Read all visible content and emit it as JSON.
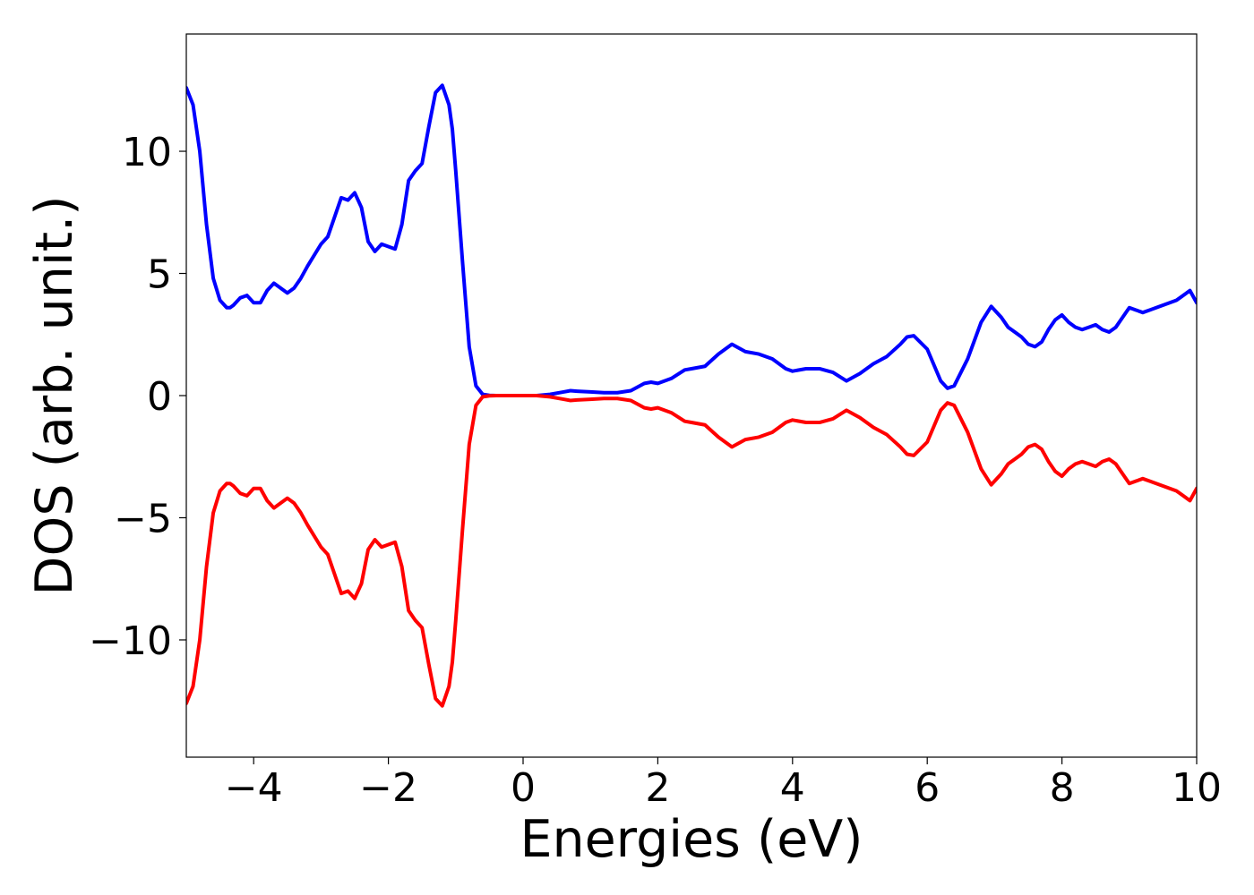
{
  "chart_data": {
    "type": "line",
    "title": "",
    "xlabel": "Energies (eV)",
    "ylabel": "DOS (arb. unit.)",
    "xlim": [
      -5,
      10
    ],
    "ylim": [
      -14.8,
      14.8
    ],
    "xticks": [
      -4,
      -2,
      0,
      2,
      4,
      6,
      8,
      10
    ],
    "xtick_labels": [
      "−4",
      "−2",
      "0",
      "2",
      "4",
      "6",
      "8",
      "10"
    ],
    "yticks": [
      -10,
      -5,
      0,
      5,
      10
    ],
    "ytick_labels": [
      "−10",
      "−5",
      "0",
      "5",
      "10"
    ],
    "grid": false,
    "legend": "none",
    "series": [
      {
        "color": "#0000ff",
        "x": [
          -5.0,
          -4.9,
          -4.8,
          -4.7,
          -4.6,
          -4.5,
          -4.4,
          -4.35,
          -4.3,
          -4.2,
          -4.1,
          -4.0,
          -3.9,
          -3.8,
          -3.7,
          -3.6,
          -3.5,
          -3.4,
          -3.3,
          -3.2,
          -3.0,
          -2.9,
          -2.8,
          -2.7,
          -2.6,
          -2.5,
          -2.4,
          -2.3,
          -2.2,
          -2.1,
          -2.0,
          -1.9,
          -1.8,
          -1.7,
          -1.6,
          -1.5,
          -1.4,
          -1.3,
          -1.2,
          -1.1,
          -1.05,
          -1.0,
          -0.9,
          -0.8,
          -0.7,
          -0.6,
          -0.5,
          -0.4,
          -0.3,
          -0.2,
          0.0,
          0.2,
          0.4,
          0.6,
          0.7,
          0.8,
          1.0,
          1.2,
          1.4,
          1.6,
          1.8,
          1.9,
          2.0,
          2.2,
          2.4,
          2.5,
          2.7,
          2.9,
          3.1,
          3.3,
          3.5,
          3.7,
          3.9,
          4.0,
          4.2,
          4.4,
          4.6,
          4.8,
          5.0,
          5.2,
          5.4,
          5.6,
          5.7,
          5.8,
          6.0,
          6.2,
          6.3,
          6.4,
          6.6,
          6.8,
          6.95,
          7.1,
          7.2,
          7.3,
          7.4,
          7.5,
          7.6,
          7.7,
          7.8,
          7.9,
          8.0,
          8.1,
          8.2,
          8.3,
          8.4,
          8.5,
          8.6,
          8.7,
          8.8,
          8.9,
          9.0,
          9.1,
          9.2,
          9.3,
          9.4,
          9.5,
          9.6,
          9.7,
          9.8,
          9.9,
          10.0
        ],
        "y": [
          12.6,
          11.9,
          10.0,
          7.0,
          4.8,
          3.9,
          3.6,
          3.6,
          3.7,
          4.0,
          4.1,
          3.8,
          3.8,
          4.3,
          4.6,
          4.4,
          4.2,
          4.4,
          4.8,
          5.3,
          6.2,
          6.5,
          7.3,
          8.1,
          8.0,
          8.3,
          7.7,
          6.3,
          5.9,
          6.2,
          6.1,
          6.0,
          7.0,
          8.8,
          9.2,
          9.5,
          11.0,
          12.4,
          12.7,
          11.9,
          10.9,
          9.2,
          5.5,
          2.0,
          0.4,
          0.05,
          0.01,
          0.0,
          0.0,
          0.0,
          0.0,
          0.0,
          0.05,
          0.15,
          0.2,
          0.18,
          0.15,
          0.12,
          0.12,
          0.2,
          0.5,
          0.55,
          0.5,
          0.7,
          1.05,
          1.1,
          1.2,
          1.7,
          2.1,
          1.8,
          1.7,
          1.5,
          1.1,
          1.0,
          1.1,
          1.1,
          0.95,
          0.6,
          0.9,
          1.3,
          1.6,
          2.1,
          2.4,
          2.45,
          1.9,
          0.6,
          0.3,
          0.4,
          1.5,
          3.0,
          3.65,
          3.2,
          2.8,
          2.6,
          2.4,
          2.1,
          2.0,
          2.2,
          2.7,
          3.1,
          3.3,
          3.0,
          2.8,
          2.7,
          2.8,
          2.9,
          2.7,
          2.6,
          2.8,
          3.2,
          3.6,
          3.5,
          3.4,
          3.5,
          3.6,
          3.7,
          3.8,
          3.9,
          4.1,
          4.3,
          3.8
        ]
      },
      {
        "color": "#ff0000",
        "x": [
          -5.0,
          -4.9,
          -4.8,
          -4.7,
          -4.6,
          -4.5,
          -4.4,
          -4.35,
          -4.3,
          -4.2,
          -4.1,
          -4.0,
          -3.9,
          -3.8,
          -3.7,
          -3.6,
          -3.5,
          -3.4,
          -3.3,
          -3.2,
          -3.0,
          -2.9,
          -2.8,
          -2.7,
          -2.6,
          -2.5,
          -2.4,
          -2.3,
          -2.2,
          -2.1,
          -2.0,
          -1.9,
          -1.8,
          -1.7,
          -1.6,
          -1.5,
          -1.4,
          -1.3,
          -1.2,
          -1.1,
          -1.05,
          -1.0,
          -0.9,
          -0.8,
          -0.7,
          -0.6,
          -0.5,
          -0.4,
          -0.3,
          -0.2,
          0.0,
          0.2,
          0.4,
          0.6,
          0.7,
          0.8,
          1.0,
          1.2,
          1.4,
          1.6,
          1.8,
          1.9,
          2.0,
          2.2,
          2.4,
          2.5,
          2.7,
          2.9,
          3.1,
          3.3,
          3.5,
          3.7,
          3.9,
          4.0,
          4.2,
          4.4,
          4.6,
          4.8,
          5.0,
          5.2,
          5.4,
          5.6,
          5.7,
          5.8,
          6.0,
          6.2,
          6.3,
          6.4,
          6.6,
          6.8,
          6.95,
          7.1,
          7.2,
          7.3,
          7.4,
          7.5,
          7.6,
          7.7,
          7.8,
          7.9,
          8.0,
          8.1,
          8.2,
          8.3,
          8.4,
          8.5,
          8.6,
          8.7,
          8.8,
          8.9,
          9.0,
          9.1,
          9.2,
          9.3,
          9.4,
          9.5,
          9.6,
          9.7,
          9.8,
          9.9,
          10.0
        ],
        "y": [
          -12.6,
          -11.9,
          -10.0,
          -7.0,
          -4.8,
          -3.9,
          -3.6,
          -3.6,
          -3.7,
          -4.0,
          -4.1,
          -3.8,
          -3.8,
          -4.3,
          -4.6,
          -4.4,
          -4.2,
          -4.4,
          -4.8,
          -5.3,
          -6.2,
          -6.5,
          -7.3,
          -8.1,
          -8.0,
          -8.3,
          -7.7,
          -6.3,
          -5.9,
          -6.2,
          -6.1,
          -6.0,
          -7.0,
          -8.8,
          -9.2,
          -9.5,
          -11.0,
          -12.4,
          -12.7,
          -11.9,
          -10.9,
          -9.2,
          -5.5,
          -2.0,
          -0.4,
          -0.05,
          -0.01,
          0.0,
          0.0,
          0.0,
          0.0,
          0.0,
          -0.05,
          -0.15,
          -0.2,
          -0.18,
          -0.15,
          -0.12,
          -0.12,
          -0.2,
          -0.5,
          -0.55,
          -0.5,
          -0.7,
          -1.05,
          -1.1,
          -1.2,
          -1.7,
          -2.1,
          -1.8,
          -1.7,
          -1.5,
          -1.1,
          -1.0,
          -1.1,
          -1.1,
          -0.95,
          -0.6,
          -0.9,
          -1.3,
          -1.6,
          -2.1,
          -2.4,
          -2.45,
          -1.9,
          -0.6,
          -0.3,
          -0.4,
          -1.5,
          -3.0,
          -3.65,
          -3.2,
          -2.8,
          -2.6,
          -2.4,
          -2.1,
          -2.0,
          -2.2,
          -2.7,
          -3.1,
          -3.3,
          -3.0,
          -2.8,
          -2.7,
          -2.8,
          -2.9,
          -2.7,
          -2.6,
          -2.8,
          -3.2,
          -3.6,
          -3.5,
          -3.4,
          -3.5,
          -3.6,
          -3.7,
          -3.8,
          -3.9,
          -4.1,
          -4.3,
          -3.8
        ]
      }
    ]
  }
}
